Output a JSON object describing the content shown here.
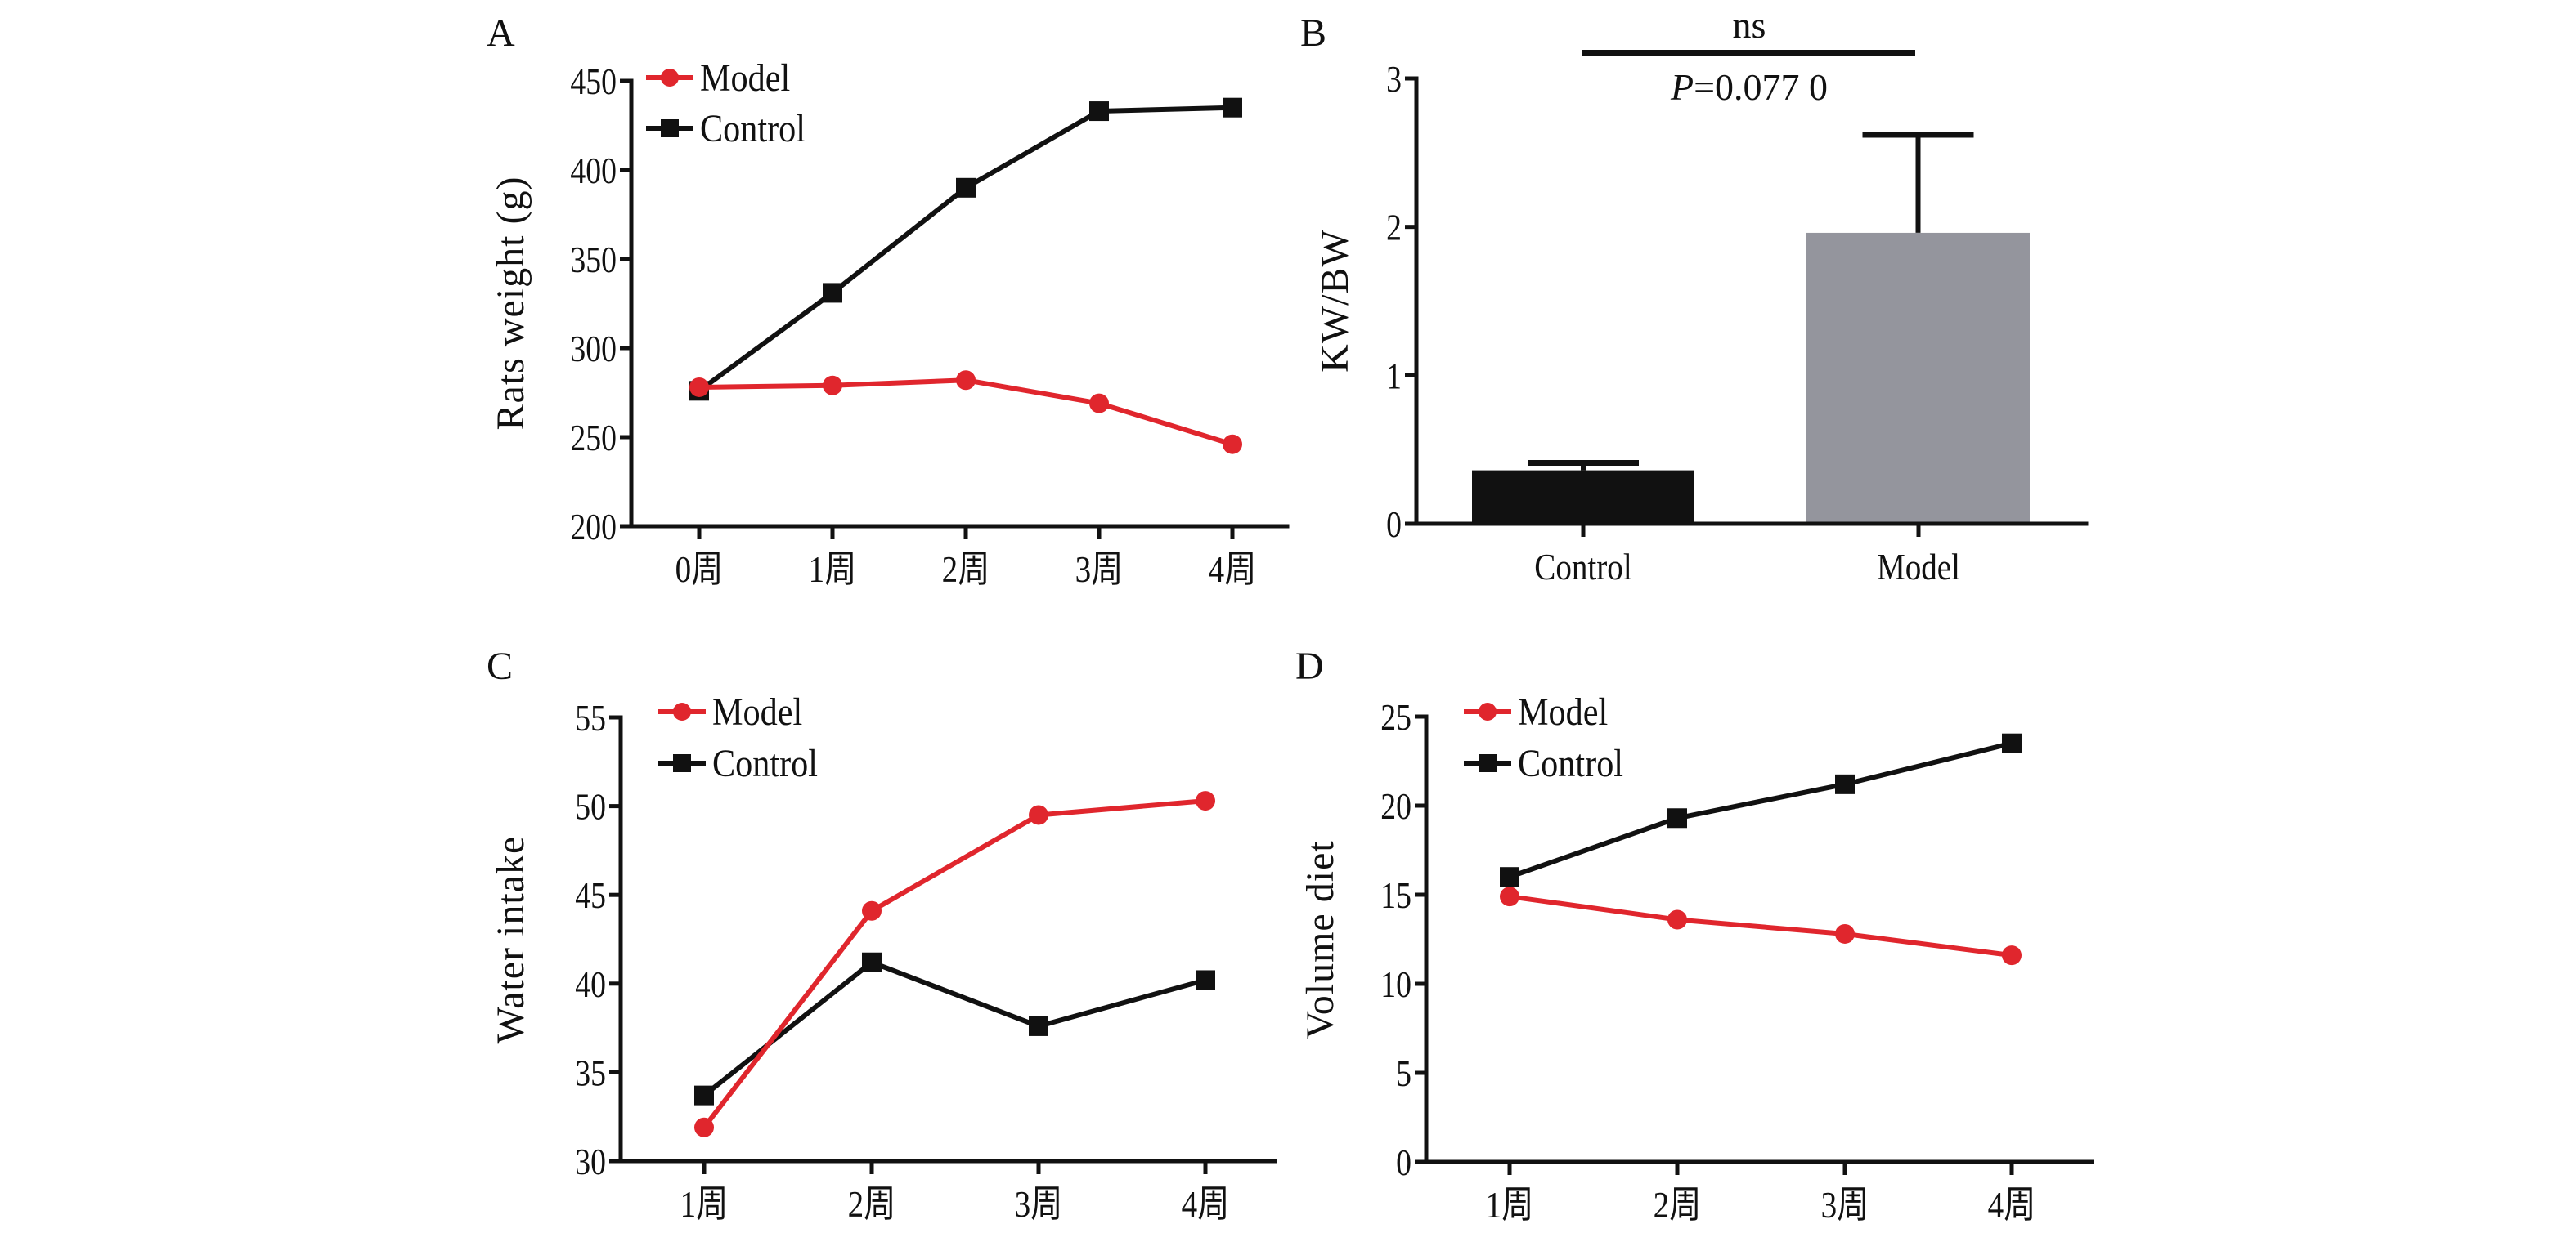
{
  "figure": {
    "colors": {
      "model": "#e0262d",
      "control": "#111111",
      "model_bar": "#94959d",
      "control_bar": "#111111",
      "axis": "#111111"
    }
  },
  "chart_data": [
    {
      "id": "A",
      "panel_label": "A",
      "type": "line",
      "title": "",
      "xlabel": "",
      "ylabel": "Rats weight (g)",
      "categories": [
        "0周",
        "1周",
        "2周",
        "3周",
        "4周"
      ],
      "ylim": [
        200,
        450
      ],
      "yticks": [
        200,
        250,
        300,
        350,
        400,
        450
      ],
      "grid": false,
      "legend": {
        "position": "top-left",
        "entries": [
          "Model",
          "Control"
        ]
      },
      "series": [
        {
          "name": "Model",
          "marker": "circle",
          "color_key": "model",
          "values": [
            278,
            279,
            282,
            269,
            246
          ]
        },
        {
          "name": "Control",
          "marker": "square",
          "color_key": "control",
          "values": [
            276,
            331,
            390,
            433,
            435
          ]
        }
      ]
    },
    {
      "id": "B",
      "panel_label": "B",
      "type": "bar",
      "title": "",
      "xlabel": "",
      "ylabel": "KW/BW",
      "categories": [
        "Control",
        "Model"
      ],
      "ylim": [
        0,
        3
      ],
      "yticks": [
        0,
        1,
        2,
        3
      ],
      "grid": false,
      "values": [
        0.36,
        1.96
      ],
      "error_upper": [
        0.41,
        2.62
      ],
      "bar_color_keys": [
        "control_bar",
        "model_bar"
      ],
      "annotations": {
        "significance": "ns",
        "p_prefix": "P",
        "p_value_text": "=0.077 0"
      }
    },
    {
      "id": "C",
      "panel_label": "C",
      "type": "line",
      "title": "",
      "xlabel": "",
      "ylabel": "Water intake",
      "categories": [
        "1周",
        "2周",
        "3周",
        "4周"
      ],
      "ylim": [
        30,
        55
      ],
      "yticks": [
        30,
        35,
        40,
        45,
        50,
        55
      ],
      "grid": false,
      "legend": {
        "position": "top-left",
        "entries": [
          "Model",
          "Control"
        ]
      },
      "series": [
        {
          "name": "Model",
          "marker": "circle",
          "color_key": "model",
          "values": [
            31.9,
            44.1,
            49.5,
            50.3
          ]
        },
        {
          "name": "Control",
          "marker": "square",
          "color_key": "control",
          "values": [
            33.7,
            41.2,
            37.6,
            40.2
          ]
        }
      ]
    },
    {
      "id": "D",
      "panel_label": "D",
      "type": "line",
      "title": "",
      "xlabel": "",
      "ylabel": "Volume diet",
      "categories": [
        "1周",
        "2周",
        "3周",
        "4周"
      ],
      "ylim": [
        0,
        25
      ],
      "yticks": [
        0,
        5,
        10,
        15,
        20,
        25
      ],
      "grid": false,
      "legend": {
        "position": "top-left",
        "entries": [
          "Model",
          "Control"
        ]
      },
      "series": [
        {
          "name": "Model",
          "marker": "circle",
          "color_key": "model",
          "values": [
            14.9,
            13.6,
            12.8,
            11.6
          ]
        },
        {
          "name": "Control",
          "marker": "square",
          "color_key": "control",
          "values": [
            16.0,
            19.3,
            21.2,
            23.5
          ]
        }
      ]
    }
  ]
}
